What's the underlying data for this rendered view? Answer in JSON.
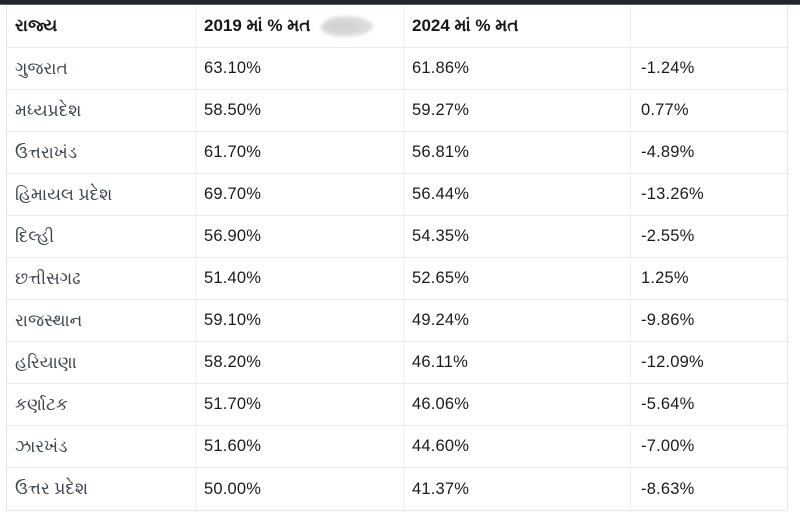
{
  "page": {
    "background_color": "#ffffff",
    "top_bar_color": "#22252b"
  },
  "table": {
    "columns": [
      {
        "label": "રાજ્ય"
      },
      {
        "label": "2019 માં % મત",
        "has_redacted_blob": true
      },
      {
        "label": "2024 માં % મત"
      },
      {
        "label": ""
      }
    ],
    "rows": [
      {
        "state": "ગુજરાત",
        "pct2019": "63.10%",
        "pct2024": "61.86%",
        "diff": "-1.24%"
      },
      {
        "state": "મધ્યપ્રદેશ",
        "pct2019": "58.50%",
        "pct2024": "59.27%",
        "diff": "0.77%"
      },
      {
        "state": "ઉત્તરાખંડ",
        "pct2019": "61.70%",
        "pct2024": "56.81%",
        "diff": "-4.89%"
      },
      {
        "state": "હિમાયલ પ્રદેશ",
        "pct2019": "69.70%",
        "pct2024": "56.44%",
        "diff": "-13.26%"
      },
      {
        "state": "દિલ્હી",
        "pct2019": "56.90%",
        "pct2024": "54.35%",
        "diff": "-2.55%"
      },
      {
        "state": "છત્તીસગઢ",
        "pct2019": "51.40%",
        "pct2024": "52.65%",
        "diff": "1.25%"
      },
      {
        "state": "રાજસ્થાન",
        "pct2019": "59.10%",
        "pct2024": "49.24%",
        "diff": "-9.86%"
      },
      {
        "state": "હરિયાણા",
        "pct2019": "58.20%",
        "pct2024": "46.11%",
        "diff": "-12.09%"
      },
      {
        "state": "કર્ણાટક",
        "pct2019": "51.70%",
        "pct2024": "46.06%",
        "diff": "-5.64%"
      },
      {
        "state": "ઝારખંડ",
        "pct2019": "51.60%",
        "pct2024": "44.60%",
        "diff": "-7.00%"
      },
      {
        "state": "ઉત્તર પ્રદેશ",
        "pct2019": "50.00%",
        "pct2024": "41.37%",
        "diff": "-8.63%"
      }
    ]
  },
  "chart_data": {
    "type": "table",
    "title": "",
    "columns": [
      "રાજ્ય",
      "2019 માં % મત",
      "2024 માં % મત",
      ""
    ],
    "unit": "%",
    "rows": [
      [
        "ગુજરાત",
        63.1,
        61.86,
        -1.24
      ],
      [
        "મધ્યપ્રદેશ",
        58.5,
        59.27,
        0.77
      ],
      [
        "ઉત્તરાખંડ",
        61.7,
        56.81,
        -4.89
      ],
      [
        "હિમાયલ પ્રદેશ",
        69.7,
        56.44,
        -13.26
      ],
      [
        "દિલ્હી",
        56.9,
        54.35,
        -2.55
      ],
      [
        "છત્તીસગઢ",
        51.4,
        52.65,
        1.25
      ],
      [
        "રાજસ્થાન",
        59.1,
        49.24,
        -9.86
      ],
      [
        "હરિયાણા",
        58.2,
        46.11,
        -12.09
      ],
      [
        "કર્ણાટક",
        51.7,
        46.06,
        -5.64
      ],
      [
        "ઝારખંડ",
        51.6,
        44.6,
        -7.0
      ],
      [
        "ઉત્તર પ્રદેશ",
        50.0,
        41.37,
        -8.63
      ]
    ]
  }
}
